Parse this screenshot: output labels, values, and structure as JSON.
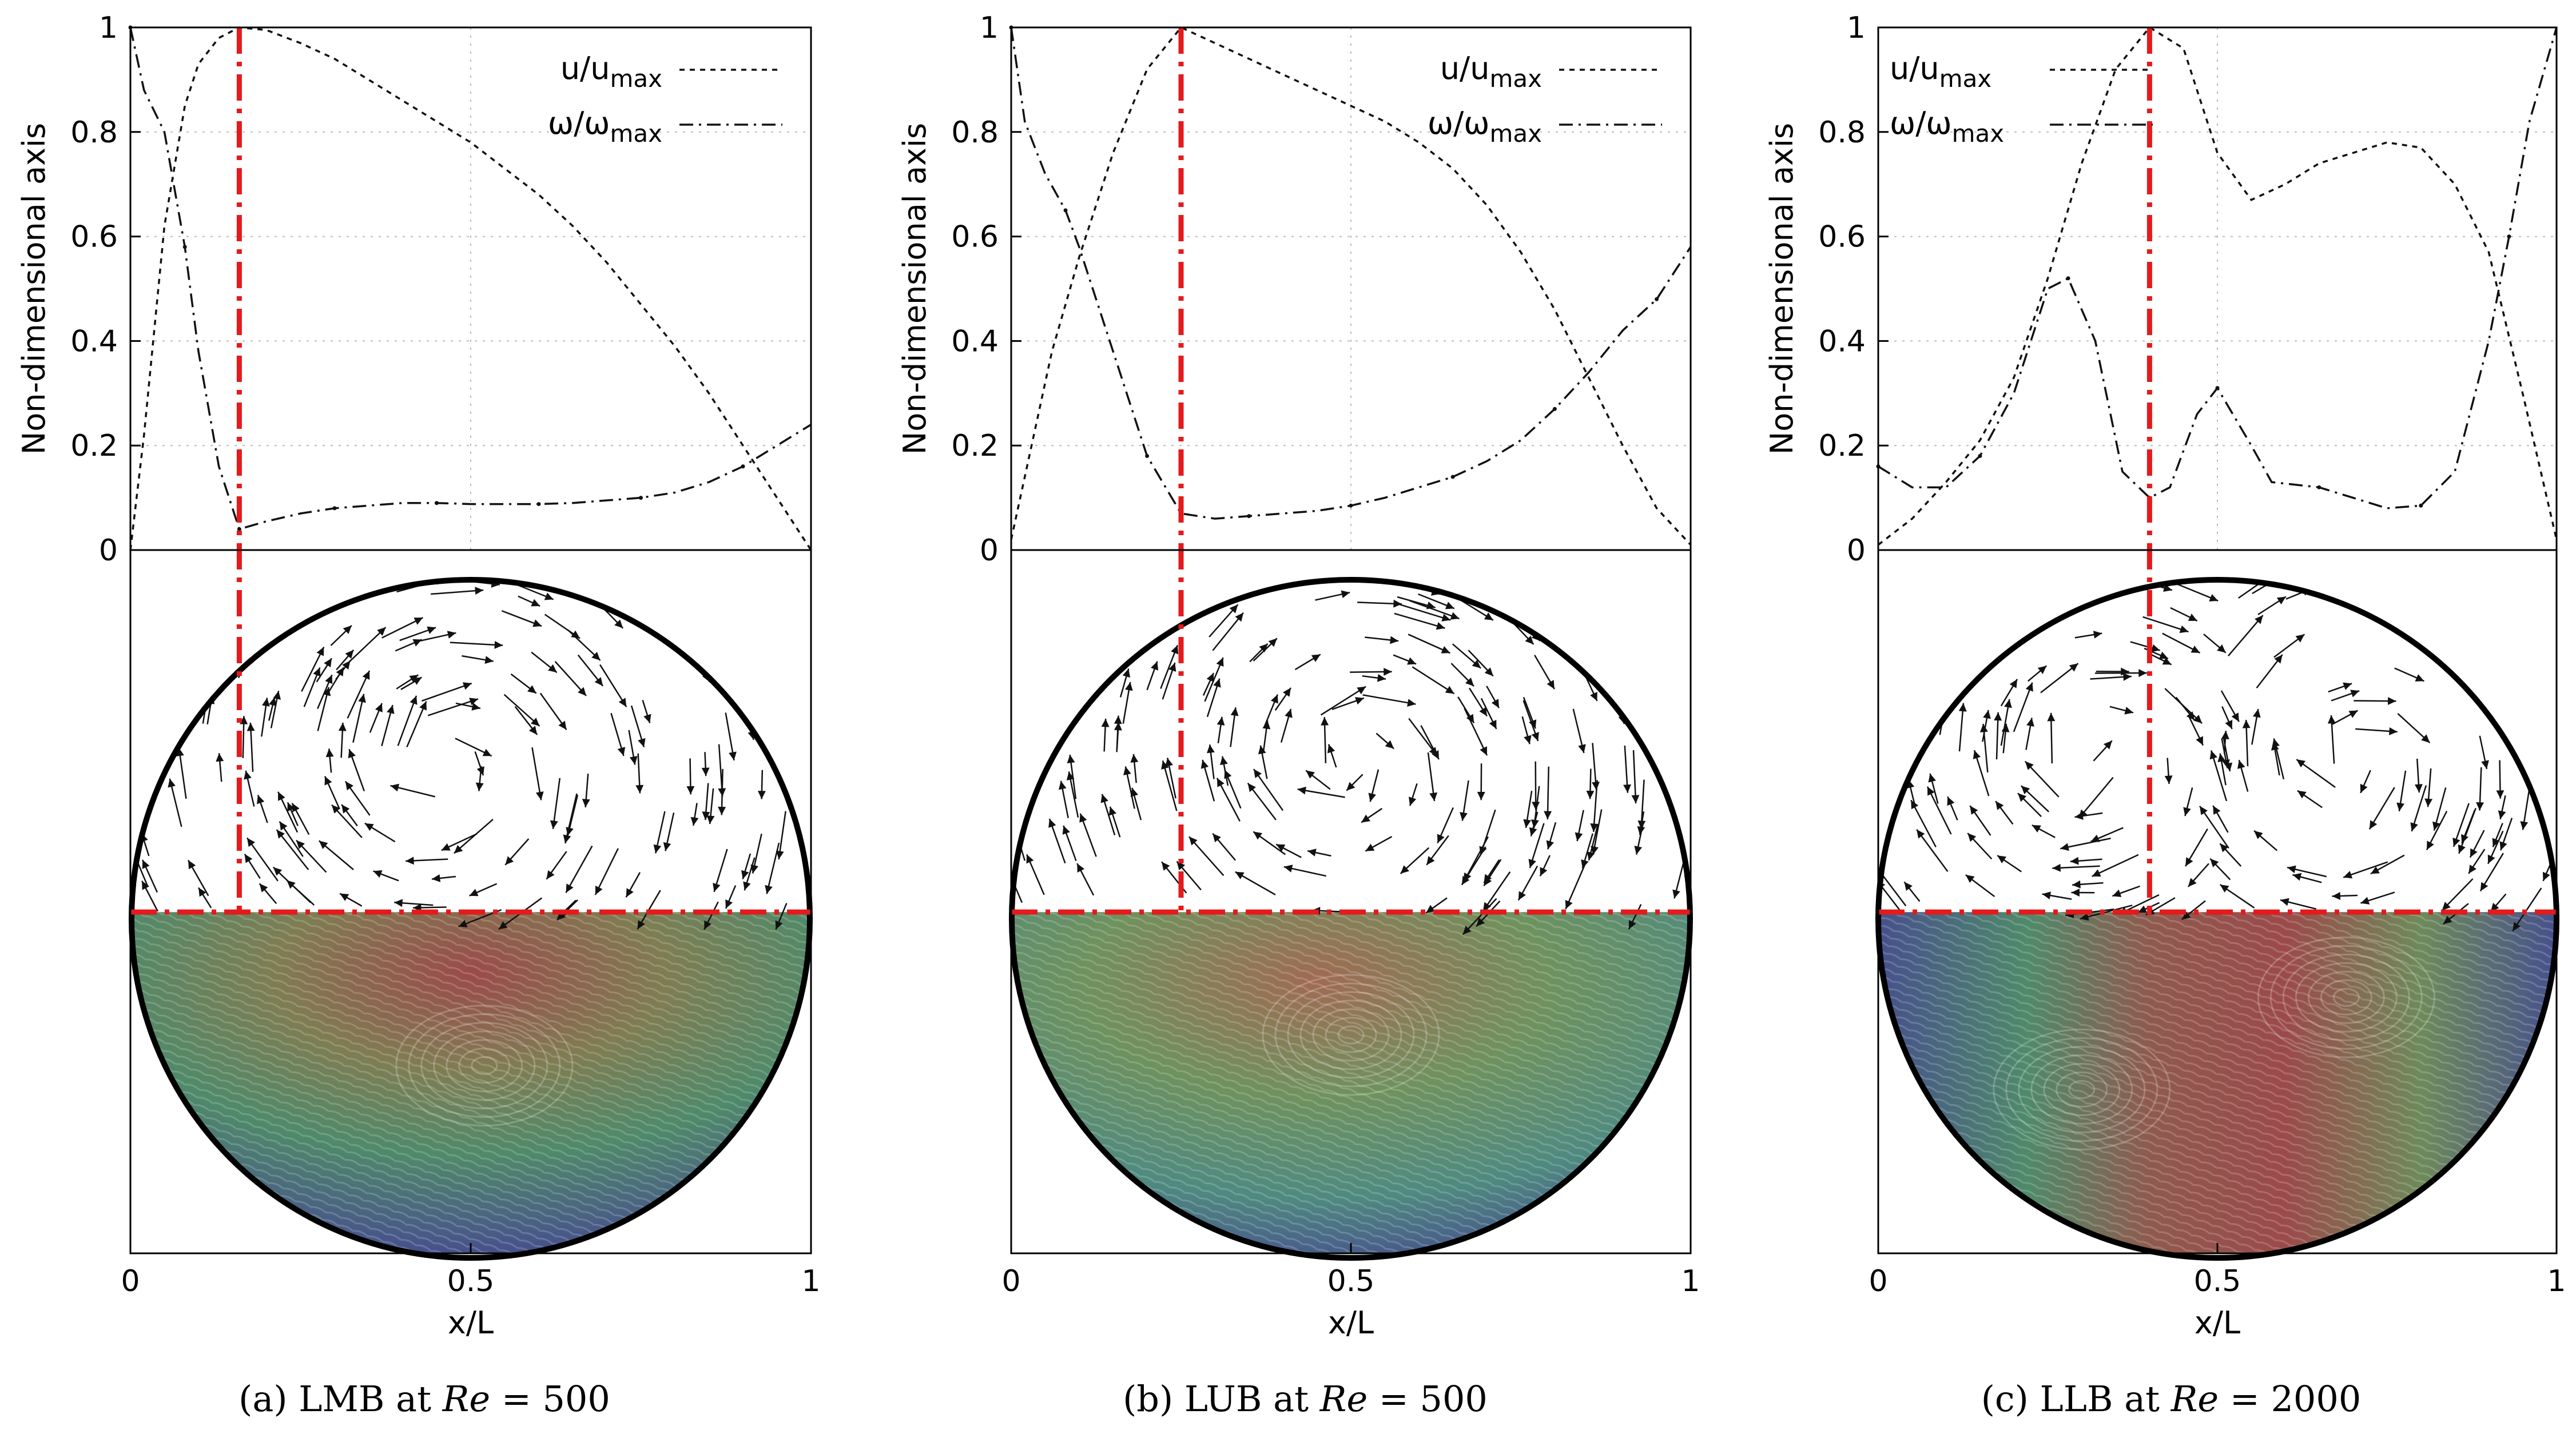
{
  "chart_data": [
    {
      "type": "line",
      "caption": {
        "prefix": "(a) LMB at ",
        "re_symbol": "Re",
        "re_value": " = 500"
      },
      "xlabel": "x/L",
      "ylabel": "Non-dimensional axis",
      "xlim": [
        0,
        1
      ],
      "ylim": [
        0,
        1
      ],
      "xticks": [
        "0",
        "0.5",
        "1"
      ],
      "yticks": [
        "0",
        "0.2",
        "0.4",
        "0.6",
        "0.8",
        "1"
      ],
      "grid": true,
      "legend_position": "top-right",
      "marker_x": 0.16,
      "series": [
        {
          "name": "u/u",
          "subscript": "max",
          "style": "dotted",
          "x": [
            0,
            0.02,
            0.05,
            0.08,
            0.1,
            0.13,
            0.16,
            0.2,
            0.25,
            0.3,
            0.35,
            0.4,
            0.45,
            0.5,
            0.55,
            0.6,
            0.65,
            0.7,
            0.75,
            0.8,
            0.85,
            0.9,
            0.95,
            1.0
          ],
          "y": [
            0,
            0.22,
            0.62,
            0.85,
            0.93,
            0.98,
            1.0,
            0.995,
            0.97,
            0.94,
            0.9,
            0.86,
            0.82,
            0.78,
            0.73,
            0.68,
            0.62,
            0.55,
            0.47,
            0.39,
            0.3,
            0.2,
            0.1,
            0
          ]
        },
        {
          "name": "ω/ω",
          "subscript": "max",
          "style": "dashdot",
          "x": [
            0,
            0.02,
            0.05,
            0.08,
            0.1,
            0.13,
            0.16,
            0.2,
            0.25,
            0.3,
            0.35,
            0.4,
            0.45,
            0.5,
            0.55,
            0.6,
            0.65,
            0.7,
            0.75,
            0.8,
            0.85,
            0.9,
            0.95,
            1.0
          ],
          "y": [
            1.0,
            0.88,
            0.8,
            0.58,
            0.38,
            0.16,
            0.04,
            0.055,
            0.07,
            0.08,
            0.085,
            0.09,
            0.09,
            0.088,
            0.088,
            0.088,
            0.09,
            0.095,
            0.1,
            0.11,
            0.13,
            0.16,
            0.2,
            0.24
          ]
        }
      ],
      "bottom_panel": "velocity vectors (upper half) and streamlines (lower half)"
    },
    {
      "type": "line",
      "caption": {
        "prefix": "(b) LUB at ",
        "re_symbol": "Re",
        "re_value": " = 500"
      },
      "xlabel": "x/L",
      "ylabel": "Non-dimensional axis",
      "xlim": [
        0,
        1
      ],
      "ylim": [
        0,
        1
      ],
      "xticks": [
        "0",
        "0.5",
        "1"
      ],
      "yticks": [
        "0",
        "0.2",
        "0.4",
        "0.6",
        "0.8",
        "1"
      ],
      "grid": true,
      "legend_position": "top-right",
      "marker_x": 0.25,
      "series": [
        {
          "name": "u/u",
          "subscript": "max",
          "style": "dotted",
          "x": [
            0,
            0.03,
            0.06,
            0.1,
            0.15,
            0.2,
            0.25,
            0.3,
            0.35,
            0.4,
            0.45,
            0.5,
            0.55,
            0.6,
            0.65,
            0.7,
            0.75,
            0.8,
            0.85,
            0.9,
            0.95,
            1.0
          ],
          "y": [
            0.02,
            0.2,
            0.38,
            0.56,
            0.76,
            0.92,
            1.0,
            0.97,
            0.94,
            0.91,
            0.88,
            0.85,
            0.82,
            0.78,
            0.73,
            0.66,
            0.57,
            0.46,
            0.33,
            0.2,
            0.08,
            0.01
          ]
        },
        {
          "name": "ω/ω",
          "subscript": "max",
          "style": "dashdot",
          "x": [
            0,
            0.02,
            0.05,
            0.08,
            0.1,
            0.15,
            0.2,
            0.25,
            0.3,
            0.35,
            0.4,
            0.45,
            0.5,
            0.55,
            0.6,
            0.65,
            0.7,
            0.75,
            0.8,
            0.85,
            0.9,
            0.95,
            1.0
          ],
          "y": [
            1.0,
            0.82,
            0.72,
            0.65,
            0.58,
            0.38,
            0.18,
            0.07,
            0.06,
            0.065,
            0.07,
            0.075,
            0.085,
            0.1,
            0.12,
            0.14,
            0.17,
            0.21,
            0.27,
            0.34,
            0.42,
            0.48,
            0.58
          ]
        }
      ],
      "bottom_panel": "velocity vectors (upper half) and streamlines (lower half)"
    },
    {
      "type": "line",
      "caption": {
        "prefix": "(c) LLB at ",
        "re_symbol": "Re",
        "re_value": " = 2000"
      },
      "xlabel": "x/L",
      "ylabel": "Non-dimensional axis",
      "xlim": [
        0,
        1
      ],
      "ylim": [
        0,
        1
      ],
      "xticks": [
        "0",
        "0.5",
        "1"
      ],
      "yticks": [
        "0",
        "0.2",
        "0.4",
        "0.6",
        "0.8",
        "1"
      ],
      "grid": true,
      "legend_position": "top-left",
      "marker_x": 0.4,
      "series": [
        {
          "name": "u/u",
          "subscript": "max",
          "style": "dotted",
          "x": [
            0,
            0.05,
            0.1,
            0.15,
            0.2,
            0.25,
            0.3,
            0.35,
            0.4,
            0.45,
            0.5,
            0.55,
            0.6,
            0.65,
            0.7,
            0.75,
            0.8,
            0.85,
            0.9,
            0.95,
            1.0
          ],
          "y": [
            0.01,
            0.06,
            0.13,
            0.21,
            0.33,
            0.52,
            0.74,
            0.92,
            1.0,
            0.96,
            0.76,
            0.67,
            0.7,
            0.74,
            0.76,
            0.78,
            0.77,
            0.7,
            0.57,
            0.3,
            0.02
          ]
        },
        {
          "name": "ω/ω",
          "subscript": "max",
          "style": "dashdot",
          "x": [
            0,
            0.05,
            0.1,
            0.15,
            0.2,
            0.25,
            0.28,
            0.32,
            0.36,
            0.4,
            0.43,
            0.47,
            0.5,
            0.55,
            0.58,
            0.65,
            0.7,
            0.75,
            0.8,
            0.85,
            0.9,
            0.93,
            0.96,
            1.0
          ],
          "y": [
            0.16,
            0.12,
            0.12,
            0.18,
            0.3,
            0.5,
            0.52,
            0.4,
            0.15,
            0.1,
            0.12,
            0.26,
            0.31,
            0.2,
            0.13,
            0.12,
            0.1,
            0.08,
            0.085,
            0.15,
            0.4,
            0.6,
            0.82,
            1.0
          ]
        }
      ],
      "bottom_panel": "velocity vectors (upper half) and streamlines (lower half)"
    }
  ]
}
